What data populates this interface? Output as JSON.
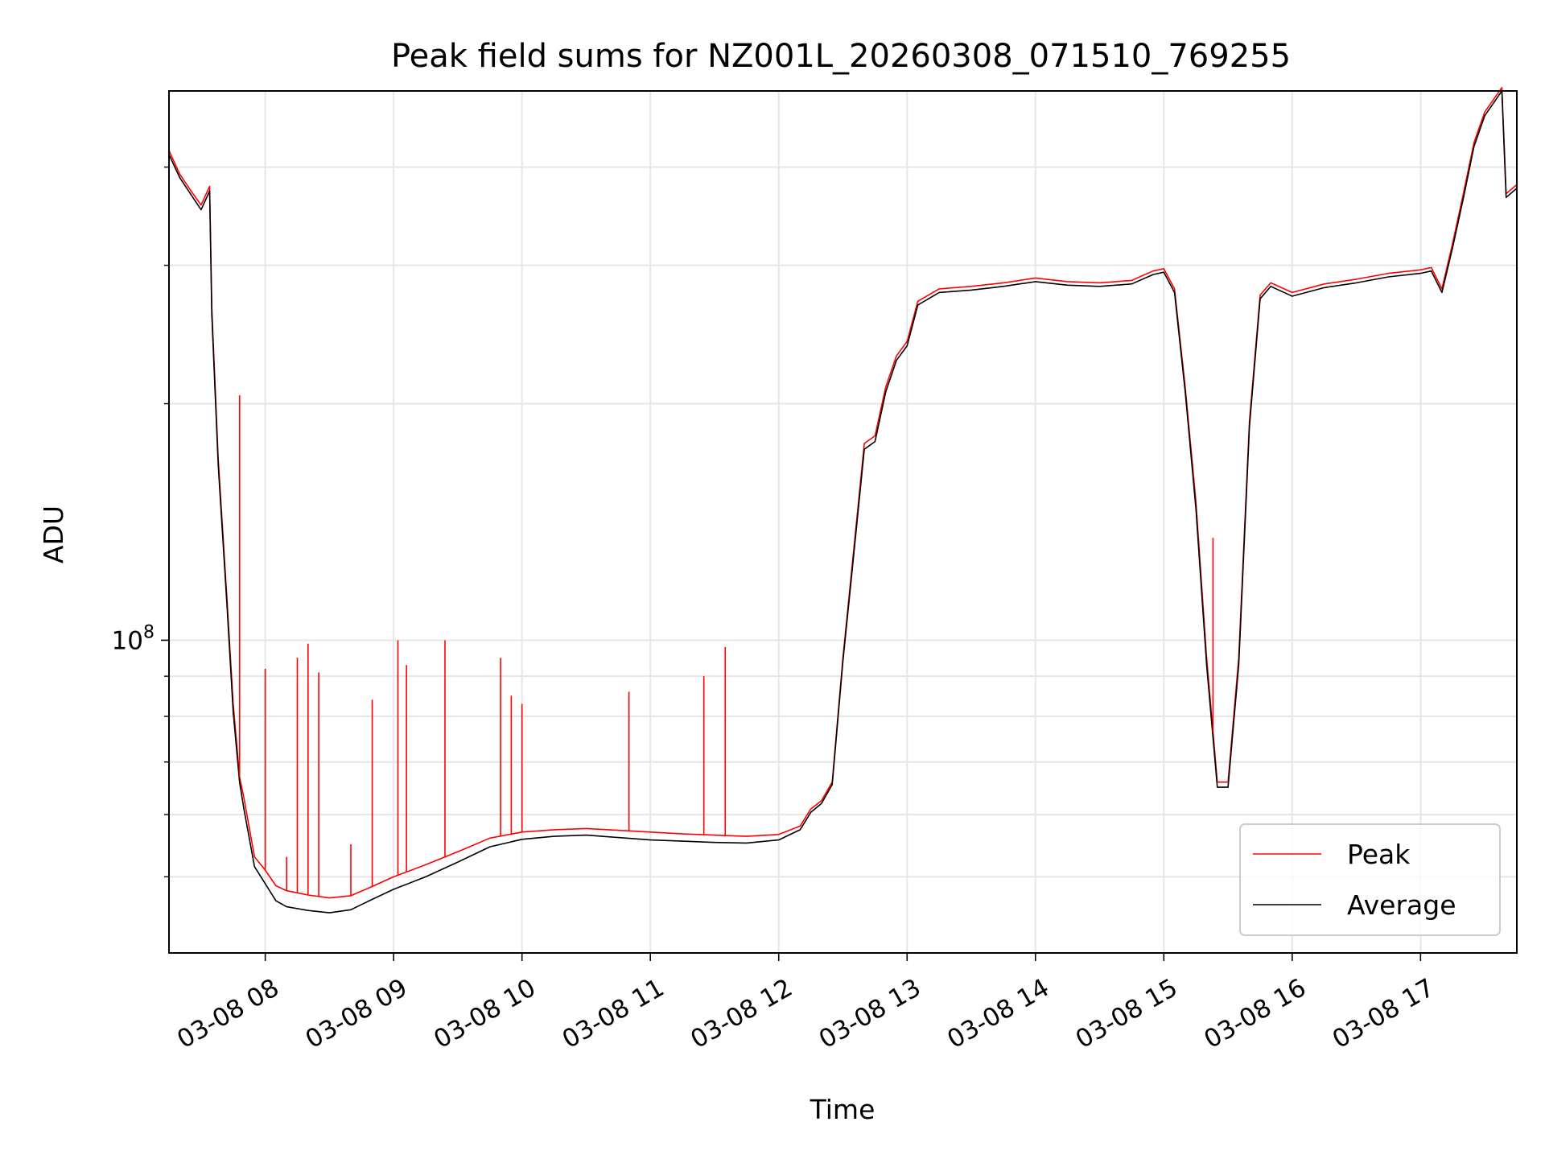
{
  "chart_data": {
    "type": "line",
    "title": "Peak field sums for NZ001L_20260308_071510_769255",
    "xlabel": "Time",
    "ylabel": "ADU",
    "x_range": [
      "2026-03-08 07:15",
      "2026-03-08 17:45"
    ],
    "y_scale": "log",
    "ylim": [
      40000000,
      500000000
    ],
    "y_major_ticks": [
      {
        "value": 100000000,
        "base": "10",
        "exp": "8"
      }
    ],
    "y_minor_ticks": [
      50000000,
      60000000,
      70000000,
      80000000,
      90000000,
      200000000,
      300000000,
      400000000
    ],
    "x_ticks": [
      {
        "t": "2026-03-08 08:00",
        "label": "03-08 08"
      },
      {
        "t": "2026-03-08 09:00",
        "label": "03-08 09"
      },
      {
        "t": "2026-03-08 10:00",
        "label": "03-08 10"
      },
      {
        "t": "2026-03-08 11:00",
        "label": "03-08 11"
      },
      {
        "t": "2026-03-08 12:00",
        "label": "03-08 12"
      },
      {
        "t": "2026-03-08 13:00",
        "label": "03-08 13"
      },
      {
        "t": "2026-03-08 14:00",
        "label": "03-08 14"
      },
      {
        "t": "2026-03-08 15:00",
        "label": "03-08 15"
      },
      {
        "t": "2026-03-08 16:00",
        "label": "03-08 16"
      },
      {
        "t": "2026-03-08 17:00",
        "label": "03-08 17"
      }
    ],
    "grid": true,
    "legend_position": "lower-right",
    "series": [
      {
        "name": "Peak",
        "color": "#ff0000",
        "points": [
          [
            "2026-03-08 07:15",
            420000000
          ],
          [
            "2026-03-08 07:20",
            392000000
          ],
          [
            "2026-03-08 07:25",
            374000000
          ],
          [
            "2026-03-08 07:30",
            358000000
          ],
          [
            "2026-03-08 07:34",
            378000000
          ],
          [
            "2026-03-08 07:35",
            265000000
          ],
          [
            "2026-03-08 07:38",
            170000000
          ],
          [
            "2026-03-08 07:42",
            114000000
          ],
          [
            "2026-03-08 07:45",
            83000000
          ],
          [
            "2026-03-08 07:48",
            67000000
          ],
          [
            "2026-03-08 07:50",
            63000000
          ],
          [
            "2026-03-08 07:55",
            53000000
          ],
          [
            "2026-03-08 08:00",
            51000000
          ],
          [
            "2026-03-08 08:05",
            48700000
          ],
          [
            "2026-03-08 08:10",
            48000000
          ],
          [
            "2026-03-08 08:20",
            47400000
          ],
          [
            "2026-03-08 08:30",
            47000000
          ],
          [
            "2026-03-08 08:40",
            47300000
          ],
          [
            "2026-03-08 08:50",
            48600000
          ],
          [
            "2026-03-08 09:00",
            50000000
          ],
          [
            "2026-03-08 09:15",
            51800000
          ],
          [
            "2026-03-08 09:30",
            53800000
          ],
          [
            "2026-03-08 09:45",
            56000000
          ],
          [
            "2026-03-08 10:00",
            57000000
          ],
          [
            "2026-03-08 10:15",
            57400000
          ],
          [
            "2026-03-08 10:30",
            57600000
          ],
          [
            "2026-03-08 10:45",
            57300000
          ],
          [
            "2026-03-08 11:00",
            57000000
          ],
          [
            "2026-03-08 11:15",
            56700000
          ],
          [
            "2026-03-08 11:30",
            56500000
          ],
          [
            "2026-03-08 11:45",
            56300000
          ],
          [
            "2026-03-08 12:00",
            56600000
          ],
          [
            "2026-03-08 12:10",
            58000000
          ],
          [
            "2026-03-08 12:15",
            61000000
          ],
          [
            "2026-03-08 12:20",
            62500000
          ],
          [
            "2026-03-08 12:25",
            66000000
          ],
          [
            "2026-03-08 12:30",
            95000000
          ],
          [
            "2026-03-08 12:35",
            130000000
          ],
          [
            "2026-03-08 12:40",
            178000000
          ],
          [
            "2026-03-08 12:45",
            182000000
          ],
          [
            "2026-03-08 12:50",
            210000000
          ],
          [
            "2026-03-08 12:55",
            230000000
          ],
          [
            "2026-03-08 13:00",
            240000000
          ],
          [
            "2026-03-08 13:05",
            270000000
          ],
          [
            "2026-03-08 13:15",
            280000000
          ],
          [
            "2026-03-08 13:30",
            282000000
          ],
          [
            "2026-03-08 13:45",
            285000000
          ],
          [
            "2026-03-08 14:00",
            289000000
          ],
          [
            "2026-03-08 14:15",
            286000000
          ],
          [
            "2026-03-08 14:30",
            285000000
          ],
          [
            "2026-03-08 14:45",
            287000000
          ],
          [
            "2026-03-08 14:55",
            295000000
          ],
          [
            "2026-03-08 15:00",
            297000000
          ],
          [
            "2026-03-08 15:05",
            280000000
          ],
          [
            "2026-03-08 15:10",
            210000000
          ],
          [
            "2026-03-08 15:15",
            150000000
          ],
          [
            "2026-03-08 15:20",
            95000000
          ],
          [
            "2026-03-08 15:25",
            66000000
          ],
          [
            "2026-03-08 15:30",
            66000000
          ],
          [
            "2026-03-08 15:35",
            95000000
          ],
          [
            "2026-03-08 15:40",
            190000000
          ],
          [
            "2026-03-08 15:45",
            275000000
          ],
          [
            "2026-03-08 15:50",
            285000000
          ],
          [
            "2026-03-08 16:00",
            277000000
          ],
          [
            "2026-03-08 16:15",
            284000000
          ],
          [
            "2026-03-08 16:30",
            288000000
          ],
          [
            "2026-03-08 16:45",
            293000000
          ],
          [
            "2026-03-08 17:00",
            296000000
          ],
          [
            "2026-03-08 17:05",
            298000000
          ],
          [
            "2026-03-08 17:10",
            280000000
          ],
          [
            "2026-03-08 17:15",
            320000000
          ],
          [
            "2026-03-08 17:20",
            370000000
          ],
          [
            "2026-03-08 17:25",
            430000000
          ],
          [
            "2026-03-08 17:30",
            470000000
          ],
          [
            "2026-03-08 17:38",
            505000000
          ],
          [
            "2026-03-08 17:40",
            370000000
          ],
          [
            "2026-03-08 17:45",
            380000000
          ]
        ],
        "spikes": [
          [
            "2026-03-08 07:48",
            205000000
          ],
          [
            "2026-03-08 08:00",
            92000000
          ],
          [
            "2026-03-08 08:10",
            53000000
          ],
          [
            "2026-03-08 08:15",
            95000000
          ],
          [
            "2026-03-08 08:20",
            99000000
          ],
          [
            "2026-03-08 08:25",
            91000000
          ],
          [
            "2026-03-08 08:40",
            55000000
          ],
          [
            "2026-03-08 08:50",
            84000000
          ],
          [
            "2026-03-08 09:02",
            100000000
          ],
          [
            "2026-03-08 09:06",
            93000000
          ],
          [
            "2026-03-08 09:24",
            100000000
          ],
          [
            "2026-03-08 09:50",
            95000000
          ],
          [
            "2026-03-08 09:55",
            85000000
          ],
          [
            "2026-03-08 10:00",
            83000000
          ],
          [
            "2026-03-08 10:50",
            86000000
          ],
          [
            "2026-03-08 11:25",
            90000000
          ],
          [
            "2026-03-08 11:35",
            98000000
          ],
          [
            "2026-03-08 15:23",
            135000000
          ]
        ]
      },
      {
        "name": "Average",
        "color": "#000000",
        "points": [
          [
            "2026-03-08 07:15",
            415000000
          ],
          [
            "2026-03-08 07:20",
            388000000
          ],
          [
            "2026-03-08 07:25",
            370000000
          ],
          [
            "2026-03-08 07:30",
            353000000
          ],
          [
            "2026-03-08 07:34",
            373000000
          ],
          [
            "2026-03-08 07:35",
            260000000
          ],
          [
            "2026-03-08 07:38",
            167000000
          ],
          [
            "2026-03-08 07:42",
            112000000
          ],
          [
            "2026-03-08 07:45",
            81000000
          ],
          [
            "2026-03-08 07:48",
            66000000
          ],
          [
            "2026-03-08 07:50",
            61000000
          ],
          [
            "2026-03-08 07:55",
            51500000
          ],
          [
            "2026-03-08 08:00",
            49000000
          ],
          [
            "2026-03-08 08:05",
            46600000
          ],
          [
            "2026-03-08 08:10",
            45800000
          ],
          [
            "2026-03-08 08:20",
            45300000
          ],
          [
            "2026-03-08 08:30",
            45000000
          ],
          [
            "2026-03-08 08:40",
            45400000
          ],
          [
            "2026-03-08 08:50",
            46800000
          ],
          [
            "2026-03-08 09:00",
            48200000
          ],
          [
            "2026-03-08 09:15",
            50000000
          ],
          [
            "2026-03-08 09:30",
            52200000
          ],
          [
            "2026-03-08 09:45",
            54600000
          ],
          [
            "2026-03-08 10:00",
            55800000
          ],
          [
            "2026-03-08 10:15",
            56300000
          ],
          [
            "2026-03-08 10:30",
            56500000
          ],
          [
            "2026-03-08 10:45",
            56100000
          ],
          [
            "2026-03-08 11:00",
            55700000
          ],
          [
            "2026-03-08 11:15",
            55500000
          ],
          [
            "2026-03-08 11:30",
            55300000
          ],
          [
            "2026-03-08 11:45",
            55200000
          ],
          [
            "2026-03-08 12:00",
            55700000
          ],
          [
            "2026-03-08 12:10",
            57400000
          ],
          [
            "2026-03-08 12:15",
            60400000
          ],
          [
            "2026-03-08 12:20",
            62000000
          ],
          [
            "2026-03-08 12:25",
            65500000
          ],
          [
            "2026-03-08 12:30",
            94000000
          ],
          [
            "2026-03-08 12:35",
            128000000
          ],
          [
            "2026-03-08 12:40",
            175000000
          ],
          [
            "2026-03-08 12:45",
            179000000
          ],
          [
            "2026-03-08 12:50",
            207000000
          ],
          [
            "2026-03-08 12:55",
            227000000
          ],
          [
            "2026-03-08 13:00",
            237000000
          ],
          [
            "2026-03-08 13:05",
            267000000
          ],
          [
            "2026-03-08 13:15",
            277000000
          ],
          [
            "2026-03-08 13:30",
            279000000
          ],
          [
            "2026-03-08 13:45",
            282000000
          ],
          [
            "2026-03-08 14:00",
            286000000
          ],
          [
            "2026-03-08 14:15",
            283000000
          ],
          [
            "2026-03-08 14:30",
            282000000
          ],
          [
            "2026-03-08 14:45",
            284000000
          ],
          [
            "2026-03-08 14:55",
            292000000
          ],
          [
            "2026-03-08 15:00",
            294000000
          ],
          [
            "2026-03-08 15:05",
            277000000
          ],
          [
            "2026-03-08 15:10",
            207000000
          ],
          [
            "2026-03-08 15:15",
            147000000
          ],
          [
            "2026-03-08 15:20",
            93000000
          ],
          [
            "2026-03-08 15:25",
            65000000
          ],
          [
            "2026-03-08 15:30",
            65000000
          ],
          [
            "2026-03-08 15:35",
            93000000
          ],
          [
            "2026-03-08 15:40",
            187000000
          ],
          [
            "2026-03-08 15:45",
            272000000
          ],
          [
            "2026-03-08 15:50",
            282000000
          ],
          [
            "2026-03-08 16:00",
            274000000
          ],
          [
            "2026-03-08 16:15",
            281000000
          ],
          [
            "2026-03-08 16:30",
            285000000
          ],
          [
            "2026-03-08 16:45",
            290000000
          ],
          [
            "2026-03-08 17:00",
            293000000
          ],
          [
            "2026-03-08 17:05",
            295000000
          ],
          [
            "2026-03-08 17:10",
            277000000
          ],
          [
            "2026-03-08 17:15",
            316000000
          ],
          [
            "2026-03-08 17:20",
            365000000
          ],
          [
            "2026-03-08 17:25",
            425000000
          ],
          [
            "2026-03-08 17:30",
            465000000
          ],
          [
            "2026-03-08 17:38",
            500000000
          ],
          [
            "2026-03-08 17:40",
            366000000
          ],
          [
            "2026-03-08 17:45",
            376000000
          ]
        ]
      }
    ]
  }
}
